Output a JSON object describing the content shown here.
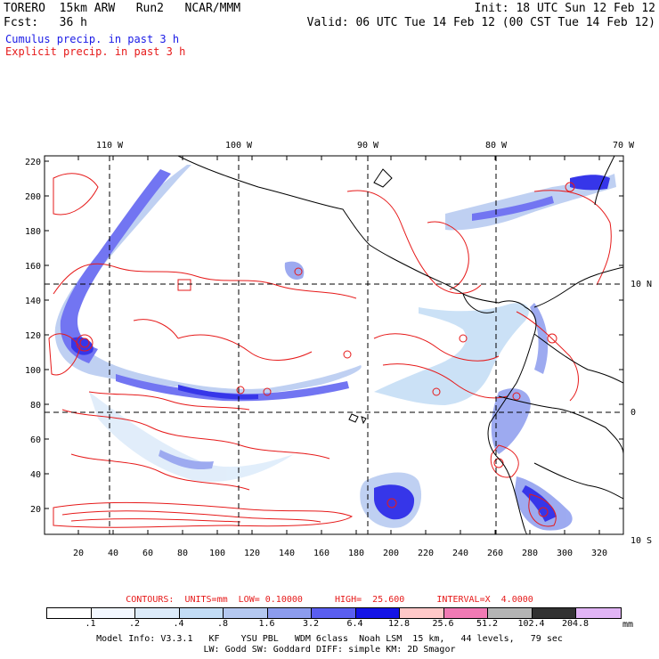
{
  "header": {
    "model": "TORERO  15km ARW   Run2   NCAR/MMM",
    "init": "Init: 18 UTC Sun 12 Feb 12",
    "fcst": "Fcst:   36 h",
    "valid": "Valid: 06 UTC Tue 14 Feb 12 (00 CST Tue 14 Feb 12)",
    "cumulus": "Cumulus precip. in past 3 h",
    "explicit": "Explicit precip. in past 3 h"
  },
  "axes": {
    "top_lon": [
      "110 W",
      "100 W",
      "90 W",
      "80 W",
      "70 W"
    ],
    "right_lat": [
      "10 N",
      "0",
      "10 S"
    ],
    "left_y": [
      "220",
      "200",
      "180",
      "160",
      "140",
      "120",
      "100",
      "80",
      "60",
      "40",
      "20"
    ],
    "bottom_x": [
      "20",
      "40",
      "60",
      "80",
      "100",
      "120",
      "140",
      "160",
      "180",
      "200",
      "220",
      "240",
      "260",
      "280",
      "300",
      "320"
    ]
  },
  "contours": "CONTOURS:  UNITS=mm  LOW= 0.10000      HIGH=  25.600      INTERVAL=X  4.0000",
  "colorbar": {
    "labels": [
      ".1",
      ".2",
      ".4",
      ".8",
      "1.6",
      "3.2",
      "6.4",
      "12.8",
      "25.6",
      "51.2",
      "102.4",
      "204.8"
    ],
    "colors": [
      "#ffffff",
      "#f2f7ff",
      "#dcebfa",
      "#c2dcf5",
      "#b4c8f0",
      "#8c9cee",
      "#5a5ef0",
      "#1414e6",
      "#ffc8c8",
      "#f07ab4",
      "#b4b4b4",
      "#323232",
      "#e1b4f5"
    ],
    "units": "mm"
  },
  "info": {
    "line1": "Model Info: V3.3.1   KF    YSU PBL   WDM 6class  Noah LSM  15 km,   44 levels,   79 sec",
    "line2": "LW: Godd SW: Goddard DIFF: simple KM: 2D Smagor"
  }
}
